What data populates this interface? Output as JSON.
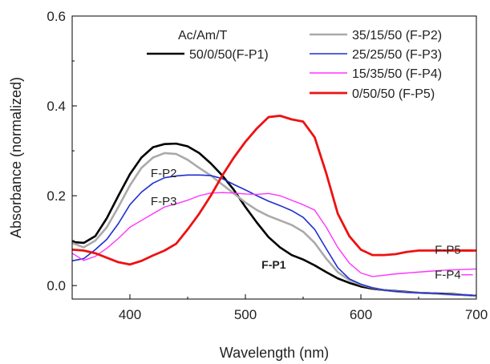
{
  "chart_data": {
    "type": "line",
    "title": "",
    "xlabel": "Wavelength (nm)",
    "ylabel": "Absorbance (normalized)",
    "xlim": [
      350,
      700
    ],
    "ylim": [
      -0.03,
      0.6
    ],
    "xticks": [
      400,
      500,
      600,
      700
    ],
    "yticks": [
      0.0,
      0.2,
      0.4,
      0.6
    ],
    "xtick_labels": [
      "400",
      "500",
      "600",
      "700"
    ],
    "ytick_labels": [
      "0.0",
      "0.2",
      "0.4",
      "0.6"
    ],
    "grid": false,
    "legend": {
      "title": "Ac/Am/T",
      "placement": "top",
      "entries": [
        {
          "label": "50/0/50(F-P1)",
          "series": "F-P1"
        },
        {
          "label": "35/15/50 (F-P2)",
          "series": "F-P2"
        },
        {
          "label": "25/25/50 (F-P3)",
          "series": "F-P3"
        },
        {
          "label": "15/35/50 (F-P4)",
          "series": "F-P4"
        },
        {
          "label": "0/50/50 (F-P5)",
          "series": "F-P5"
        }
      ]
    },
    "annotations": [
      {
        "text": "F-P2",
        "x": 418,
        "y": 0.25,
        "bold": false
      },
      {
        "text": "F-P3",
        "x": 418,
        "y": 0.188,
        "bold": false
      },
      {
        "text": "F-P1",
        "x": 514,
        "y": 0.047,
        "bold": true
      },
      {
        "text": "F-P5",
        "x": 664,
        "y": 0.08,
        "bold": false
      },
      {
        "text": "F-P4",
        "x": 664,
        "y": 0.024,
        "bold": false
      }
    ],
    "series": [
      {
        "name": "F-P1",
        "color": "#000000",
        "width": 2.6,
        "x": [
          350,
          360,
          370,
          380,
          390,
          400,
          410,
          420,
          430,
          440,
          450,
          460,
          470,
          480,
          490,
          500,
          510,
          520,
          530,
          540,
          550,
          560,
          570,
          580,
          590,
          600,
          610,
          620,
          630,
          640,
          650,
          660,
          670,
          680,
          690,
          700
        ],
        "y": [
          0.097,
          0.095,
          0.11,
          0.15,
          0.2,
          0.248,
          0.285,
          0.308,
          0.315,
          0.316,
          0.31,
          0.295,
          0.272,
          0.245,
          0.213,
          0.175,
          0.14,
          0.108,
          0.085,
          0.068,
          0.058,
          0.045,
          0.03,
          0.016,
          0.006,
          -0.002,
          -0.007,
          -0.01,
          -0.012,
          -0.014,
          -0.016,
          -0.017,
          -0.018,
          -0.019,
          -0.021,
          -0.023
        ]
      },
      {
        "name": "F-P2",
        "color": "#aaaaaa",
        "width": 2.6,
        "x": [
          350,
          360,
          370,
          380,
          390,
          400,
          410,
          420,
          430,
          440,
          450,
          460,
          470,
          480,
          490,
          500,
          510,
          520,
          530,
          540,
          550,
          560,
          570,
          580,
          590,
          600,
          610,
          620,
          630,
          640,
          650,
          660,
          670,
          680,
          690,
          700
        ],
        "y": [
          0.095,
          0.085,
          0.1,
          0.13,
          0.175,
          0.223,
          0.262,
          0.285,
          0.295,
          0.293,
          0.28,
          0.262,
          0.245,
          0.225,
          0.205,
          0.185,
          0.168,
          0.155,
          0.145,
          0.135,
          0.12,
          0.095,
          0.06,
          0.03,
          0.012,
          0.002,
          -0.005,
          -0.01,
          -0.013,
          -0.015,
          -0.016,
          -0.017,
          -0.019,
          -0.02,
          -0.021,
          -0.023
        ]
      },
      {
        "name": "F-P3",
        "color": "#1f2ed1",
        "width": 1.6,
        "x": [
          350,
          360,
          370,
          380,
          390,
          400,
          410,
          420,
          430,
          440,
          450,
          460,
          470,
          480,
          490,
          500,
          510,
          520,
          530,
          540,
          550,
          560,
          570,
          580,
          590,
          600,
          610,
          620,
          630,
          640,
          650,
          660,
          670,
          680,
          690,
          700
        ],
        "y": [
          0.055,
          0.06,
          0.08,
          0.103,
          0.138,
          0.18,
          0.208,
          0.228,
          0.24,
          0.244,
          0.246,
          0.246,
          0.245,
          0.238,
          0.225,
          0.213,
          0.2,
          0.188,
          0.178,
          0.167,
          0.152,
          0.125,
          0.082,
          0.04,
          0.015,
          0.003,
          -0.005,
          -0.01,
          -0.013,
          -0.015,
          -0.016,
          -0.017,
          -0.018,
          -0.02,
          -0.021,
          -0.022
        ]
      },
      {
        "name": "F-P4",
        "color": "#ff33ff",
        "width": 1.4,
        "x": [
          350,
          360,
          370,
          380,
          390,
          400,
          410,
          420,
          430,
          440,
          450,
          460,
          470,
          480,
          490,
          500,
          510,
          520,
          530,
          540,
          550,
          560,
          570,
          580,
          590,
          600,
          610,
          620,
          630,
          640,
          650,
          660,
          670,
          680,
          690,
          700
        ],
        "y": [
          0.072,
          0.056,
          0.065,
          0.083,
          0.105,
          0.13,
          0.145,
          0.16,
          0.175,
          0.182,
          0.19,
          0.2,
          0.206,
          0.207,
          0.206,
          0.204,
          0.203,
          0.205,
          0.2,
          0.19,
          0.18,
          0.168,
          0.13,
          0.085,
          0.05,
          0.028,
          0.02,
          0.023,
          0.026,
          0.028,
          0.03,
          0.032,
          0.034,
          0.035,
          0.036,
          0.037
        ]
      },
      {
        "name": "F-P5",
        "color": "#ee1111",
        "width": 2.8,
        "x": [
          350,
          360,
          370,
          380,
          390,
          400,
          410,
          420,
          430,
          440,
          450,
          460,
          470,
          480,
          490,
          500,
          510,
          520,
          530,
          540,
          550,
          560,
          570,
          580,
          590,
          600,
          610,
          620,
          630,
          640,
          650,
          660,
          670,
          680,
          690,
          700
        ],
        "y": [
          0.08,
          0.078,
          0.072,
          0.062,
          0.052,
          0.047,
          0.055,
          0.067,
          0.078,
          0.093,
          0.125,
          0.16,
          0.2,
          0.245,
          0.285,
          0.32,
          0.35,
          0.375,
          0.378,
          0.37,
          0.365,
          0.33,
          0.25,
          0.16,
          0.11,
          0.08,
          0.068,
          0.068,
          0.07,
          0.075,
          0.078,
          0.078,
          0.078,
          0.078,
          0.078,
          0.078
        ]
      }
    ]
  }
}
